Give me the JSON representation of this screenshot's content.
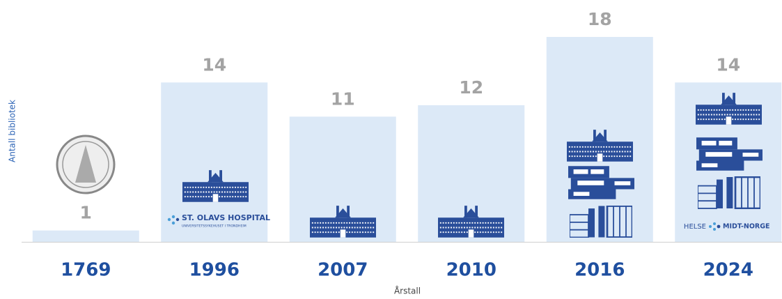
{
  "chart_data": {
    "type": "bar",
    "x_label": "Årstall",
    "y_label": "Antall bibliotek",
    "categories": [
      "1769",
      "1996",
      "2007",
      "2010",
      "2016",
      "2024"
    ],
    "values": [
      1,
      14,
      11,
      12,
      18,
      14
    ],
    "color": "#dce9f7",
    "value_label_color": "#a3a3a3",
    "category_color": "#1f4f9f"
  },
  "logos": {
    "st_olavs": {
      "name": "ST. OLAVS HOSPITAL",
      "subtitle": "UNIVERSITETSSYKEHUSET I TRONDHEIM"
    },
    "helse": {
      "left": "HELSE",
      "right": "MIDT-NORGE"
    }
  }
}
